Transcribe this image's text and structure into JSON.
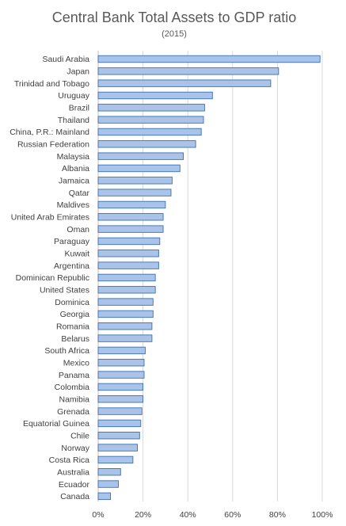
{
  "chart_data": {
    "type": "bar",
    "orientation": "horizontal",
    "title": "Central Bank Total Assets to GDP ratio",
    "subtitle": "(2015)",
    "xlabel": "",
    "ylabel": "",
    "xlim": [
      0,
      100
    ],
    "x_ticks": [
      0,
      20,
      40,
      60,
      80,
      100
    ],
    "x_tick_labels": [
      "0%",
      "20%",
      "40%",
      "60%",
      "80%",
      "100%"
    ],
    "grid": true,
    "legend": "none",
    "bar_color": "#a9c4e8",
    "bar_edge_color": "#3f6fae",
    "categories": [
      "Saudi Arabia",
      "Japan",
      "Trinidad and Tobago",
      "Uruguay",
      "Brazil",
      "Thailand",
      "China, P.R.: Mainland",
      "Russian Federation",
      "Malaysia",
      "Albania",
      "Jamaica",
      "Qatar",
      "Maldives",
      "United Arab Emirates",
      "Oman",
      "Paraguay",
      "Kuwait",
      "Argentina",
      "Dominican Republic",
      "United States",
      "Dominica",
      "Georgia",
      "Romania",
      "Belarus",
      "South Africa",
      "Mexico",
      "Panama",
      "Colombia",
      "Namibia",
      "Grenada",
      "Equatorial Guinea",
      "Chile",
      "Norway",
      "Costa Rica",
      "Australia",
      "Ecuador",
      "Canada"
    ],
    "values": [
      99,
      80.5,
      77,
      51,
      47.5,
      47,
      46,
      43.5,
      38,
      36.5,
      33,
      32.5,
      30,
      29,
      29,
      27.5,
      27,
      27,
      25.5,
      25.5,
      24.5,
      24.5,
      24,
      24,
      21,
      20.5,
      20.5,
      20,
      20,
      19.5,
      19,
      18.5,
      17.5,
      15.5,
      10,
      9,
      5.5
    ]
  }
}
